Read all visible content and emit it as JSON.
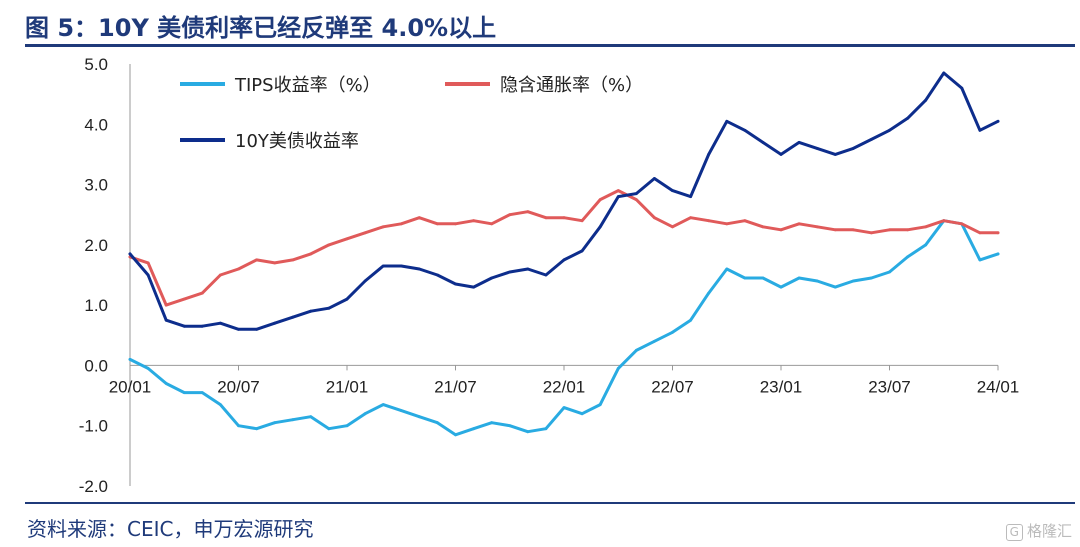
{
  "title": "图 5：10Y 美债利率已经反弹至 4.0%以上",
  "source": "资料来源：CEIC，申万宏源研究",
  "watermark": "格隆汇",
  "watermark_icon": "G",
  "chart_data": {
    "type": "line",
    "title": "图 5：10Y 美债利率已经反弹至 4.0%以上",
    "xlabel": "",
    "ylabel": "",
    "ylim": [
      -2.0,
      5.0
    ],
    "yticks": [
      "5.0",
      "4.0",
      "3.0",
      "2.0",
      "1.0",
      "0.0",
      "-1.0",
      "-2.0"
    ],
    "xtick_labels": [
      "20/01",
      "20/07",
      "21/01",
      "21/07",
      "22/01",
      "22/07",
      "23/01",
      "23/07",
      "24/01"
    ],
    "xtick_positions": [
      "2020-01",
      "2020-07",
      "2021-01",
      "2021-07",
      "2022-01",
      "2022-07",
      "2023-01",
      "2023-07",
      "2024-01"
    ],
    "x": [
      "2020-01",
      "2020-02",
      "2020-03",
      "2020-04",
      "2020-05",
      "2020-06",
      "2020-07",
      "2020-08",
      "2020-09",
      "2020-10",
      "2020-11",
      "2020-12",
      "2021-01",
      "2021-02",
      "2021-03",
      "2021-04",
      "2021-05",
      "2021-06",
      "2021-07",
      "2021-08",
      "2021-09",
      "2021-10",
      "2021-11",
      "2021-12",
      "2022-01",
      "2022-02",
      "2022-03",
      "2022-04",
      "2022-05",
      "2022-06",
      "2022-07",
      "2022-08",
      "2022-09",
      "2022-10",
      "2022-11",
      "2022-12",
      "2023-01",
      "2023-02",
      "2023-03",
      "2023-04",
      "2023-05",
      "2023-06",
      "2023-07",
      "2023-08",
      "2023-09",
      "2023-10",
      "2023-11",
      "2023-12",
      "2024-01"
    ],
    "grid": false,
    "legend_position": "top-left",
    "series": [
      {
        "name": "TIPS收益率（%）",
        "color": "#29abe2",
        "values": [
          0.1,
          -0.05,
          -0.3,
          -0.45,
          -0.45,
          -0.65,
          -1.0,
          -1.05,
          -0.95,
          -0.9,
          -0.85,
          -1.05,
          -1.0,
          -0.8,
          -0.65,
          -0.75,
          -0.85,
          -0.95,
          -1.15,
          -1.05,
          -0.95,
          -1.0,
          -1.1,
          -1.05,
          -0.7,
          -0.8,
          -0.65,
          -0.05,
          0.25,
          0.4,
          0.55,
          0.75,
          1.2,
          1.6,
          1.45,
          1.45,
          1.3,
          1.45,
          1.4,
          1.3,
          1.4,
          1.45,
          1.55,
          1.8,
          2.0,
          2.4,
          2.35,
          1.75,
          1.85
        ]
      },
      {
        "name": "隐含通胀率（%）",
        "color": "#e05a5a",
        "values": [
          1.8,
          1.7,
          1.0,
          1.1,
          1.2,
          1.5,
          1.6,
          1.75,
          1.7,
          1.75,
          1.85,
          2.0,
          2.1,
          2.2,
          2.3,
          2.35,
          2.45,
          2.35,
          2.35,
          2.4,
          2.35,
          2.5,
          2.55,
          2.45,
          2.45,
          2.4,
          2.75,
          2.9,
          2.75,
          2.45,
          2.3,
          2.45,
          2.4,
          2.35,
          2.4,
          2.3,
          2.25,
          2.35,
          2.3,
          2.25,
          2.25,
          2.2,
          2.25,
          2.25,
          2.3,
          2.4,
          2.35,
          2.2,
          2.2
        ]
      },
      {
        "name": "10Y美债收益率",
        "color": "#0d2d8c",
        "values": [
          1.85,
          1.5,
          0.75,
          0.65,
          0.65,
          0.7,
          0.6,
          0.6,
          0.7,
          0.8,
          0.9,
          0.95,
          1.1,
          1.4,
          1.65,
          1.65,
          1.6,
          1.5,
          1.35,
          1.3,
          1.45,
          1.55,
          1.6,
          1.5,
          1.75,
          1.9,
          2.3,
          2.8,
          2.85,
          3.1,
          2.9,
          2.8,
          3.5,
          4.05,
          3.9,
          3.7,
          3.5,
          3.7,
          3.6,
          3.5,
          3.6,
          3.75,
          3.9,
          4.1,
          4.4,
          4.85,
          4.6,
          3.9,
          4.05
        ]
      }
    ]
  }
}
